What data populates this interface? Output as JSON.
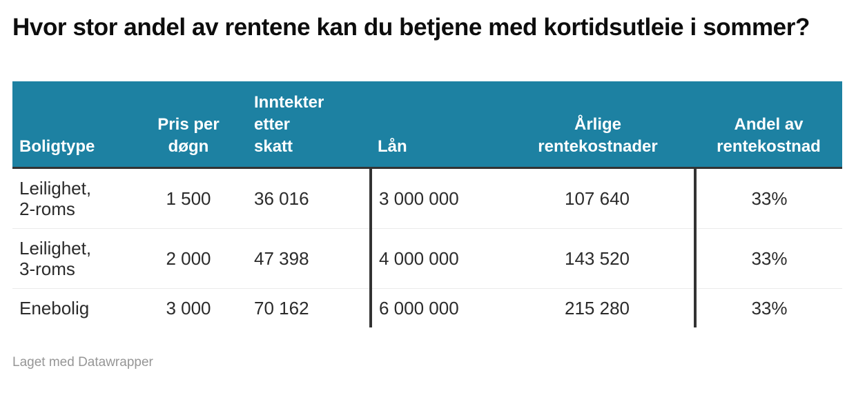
{
  "chart_data": {
    "type": "table",
    "title": "Hvor stor andel av rentene kan du betjene med kortidsutleie i sommer?",
    "columns": [
      {
        "key": "boligtype",
        "label": "Boligtype",
        "align": "left"
      },
      {
        "key": "pris-per-dogn",
        "label": "Pris per\ndøgn",
        "align": "center"
      },
      {
        "key": "inntekter-etter-skatt",
        "label": "Inntekter\netter\nskatt",
        "align": "left"
      },
      {
        "key": "lan",
        "label": "Lån",
        "align": "left"
      },
      {
        "key": "arlige-rentekostnader",
        "label": "Årlige\nrentekostnader",
        "align": "center"
      },
      {
        "key": "andel-av-rentekostnad",
        "label": "Andel av\nrentekostnad",
        "align": "center"
      }
    ],
    "rows": [
      [
        "Leilighet,\n2-roms",
        "1 500",
        "36 016",
        "3 000 000",
        "107 640",
        "33%"
      ],
      [
        "Leilighet,\n3-roms",
        "2 000",
        "47 398",
        "4 000 000",
        "143 520",
        "33%"
      ],
      [
        "Enebolig",
        "3 000",
        "70 162",
        "6 000 000",
        "215 280",
        "33%"
      ]
    ],
    "layout_hints": {
      "header_background": "teal band, white bold labels, bottom-aligned",
      "vertical_dividers_before_columns": [
        "lan",
        "andel-av-rentekostnad"
      ],
      "grid": "light horizontal separators between body rows, no outer border"
    }
  },
  "footer": {
    "credit": "Laget med Datawrapper"
  },
  "colors": {
    "header_bg": "#1d81a2",
    "header_text": "#ffffff",
    "divider": "#333333",
    "row_separator": "#eaeaea",
    "body_text": "#2b2b2b",
    "title_text": "#0d0d0d",
    "credit_text": "#969696",
    "background": "#ffffff"
  }
}
